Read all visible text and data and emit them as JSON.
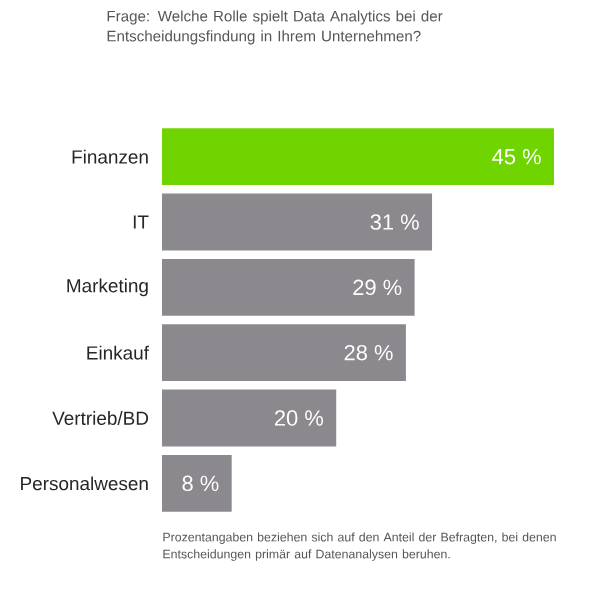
{
  "chart_data": {
    "type": "bar",
    "orientation": "horizontal",
    "title": "Frage: Welche Rolle spielt Data Analytics bei der Entscheidungsfindung in Ihrem Unternehmen?",
    "categories": [
      "Finanzen",
      "IT",
      "Marketing",
      "Einkauf",
      "Vertrieb/BD",
      "Personalwesen"
    ],
    "values": [
      45,
      31,
      29,
      28,
      20,
      8
    ],
    "colors": [
      "#6fd400",
      "#8b898e",
      "#8b898e",
      "#8b898e",
      "#8b898e",
      "#8b898e"
    ],
    "value_labels": [
      "45 %",
      "31 %",
      "29 %",
      "28 %",
      "20 %",
      "8 %"
    ],
    "annotations": [
      "Prozentangaben beziehen sich auf den Anteil der Befragten, bei denen Entscheidungen primär auf Datenanalysen beruhen."
    ]
  }
}
